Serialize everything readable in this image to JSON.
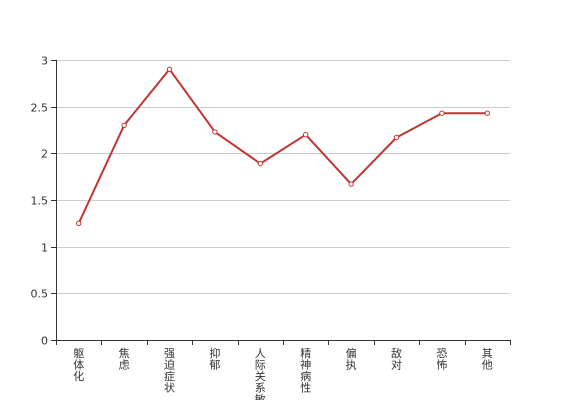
{
  "chart_data": {
    "type": "line",
    "categories": [
      "躯体化",
      "焦虑",
      "强迫症状",
      "抑郁",
      "人际关系敏感",
      "精神病性",
      "偏执",
      "敌对",
      "恐怖",
      "其他"
    ],
    "series": [
      {
        "values": [
          1.25,
          2.3,
          2.9,
          2.23,
          1.89,
          2.2,
          1.67,
          2.17,
          2.43,
          2.43
        ]
      }
    ],
    "ylim": [
      0,
      3
    ],
    "yticks": [
      0,
      0.5,
      1,
      1.5,
      2,
      2.5,
      3
    ],
    "ytick_labels": [
      "0",
      "0.5",
      "1",
      "1.5",
      "2",
      "2.5",
      "3"
    ],
    "grid": true,
    "colors": {
      "line": "#c23531",
      "grid": "#cccccc",
      "axis": "#333333",
      "marker_fill": "#ffffff"
    }
  }
}
